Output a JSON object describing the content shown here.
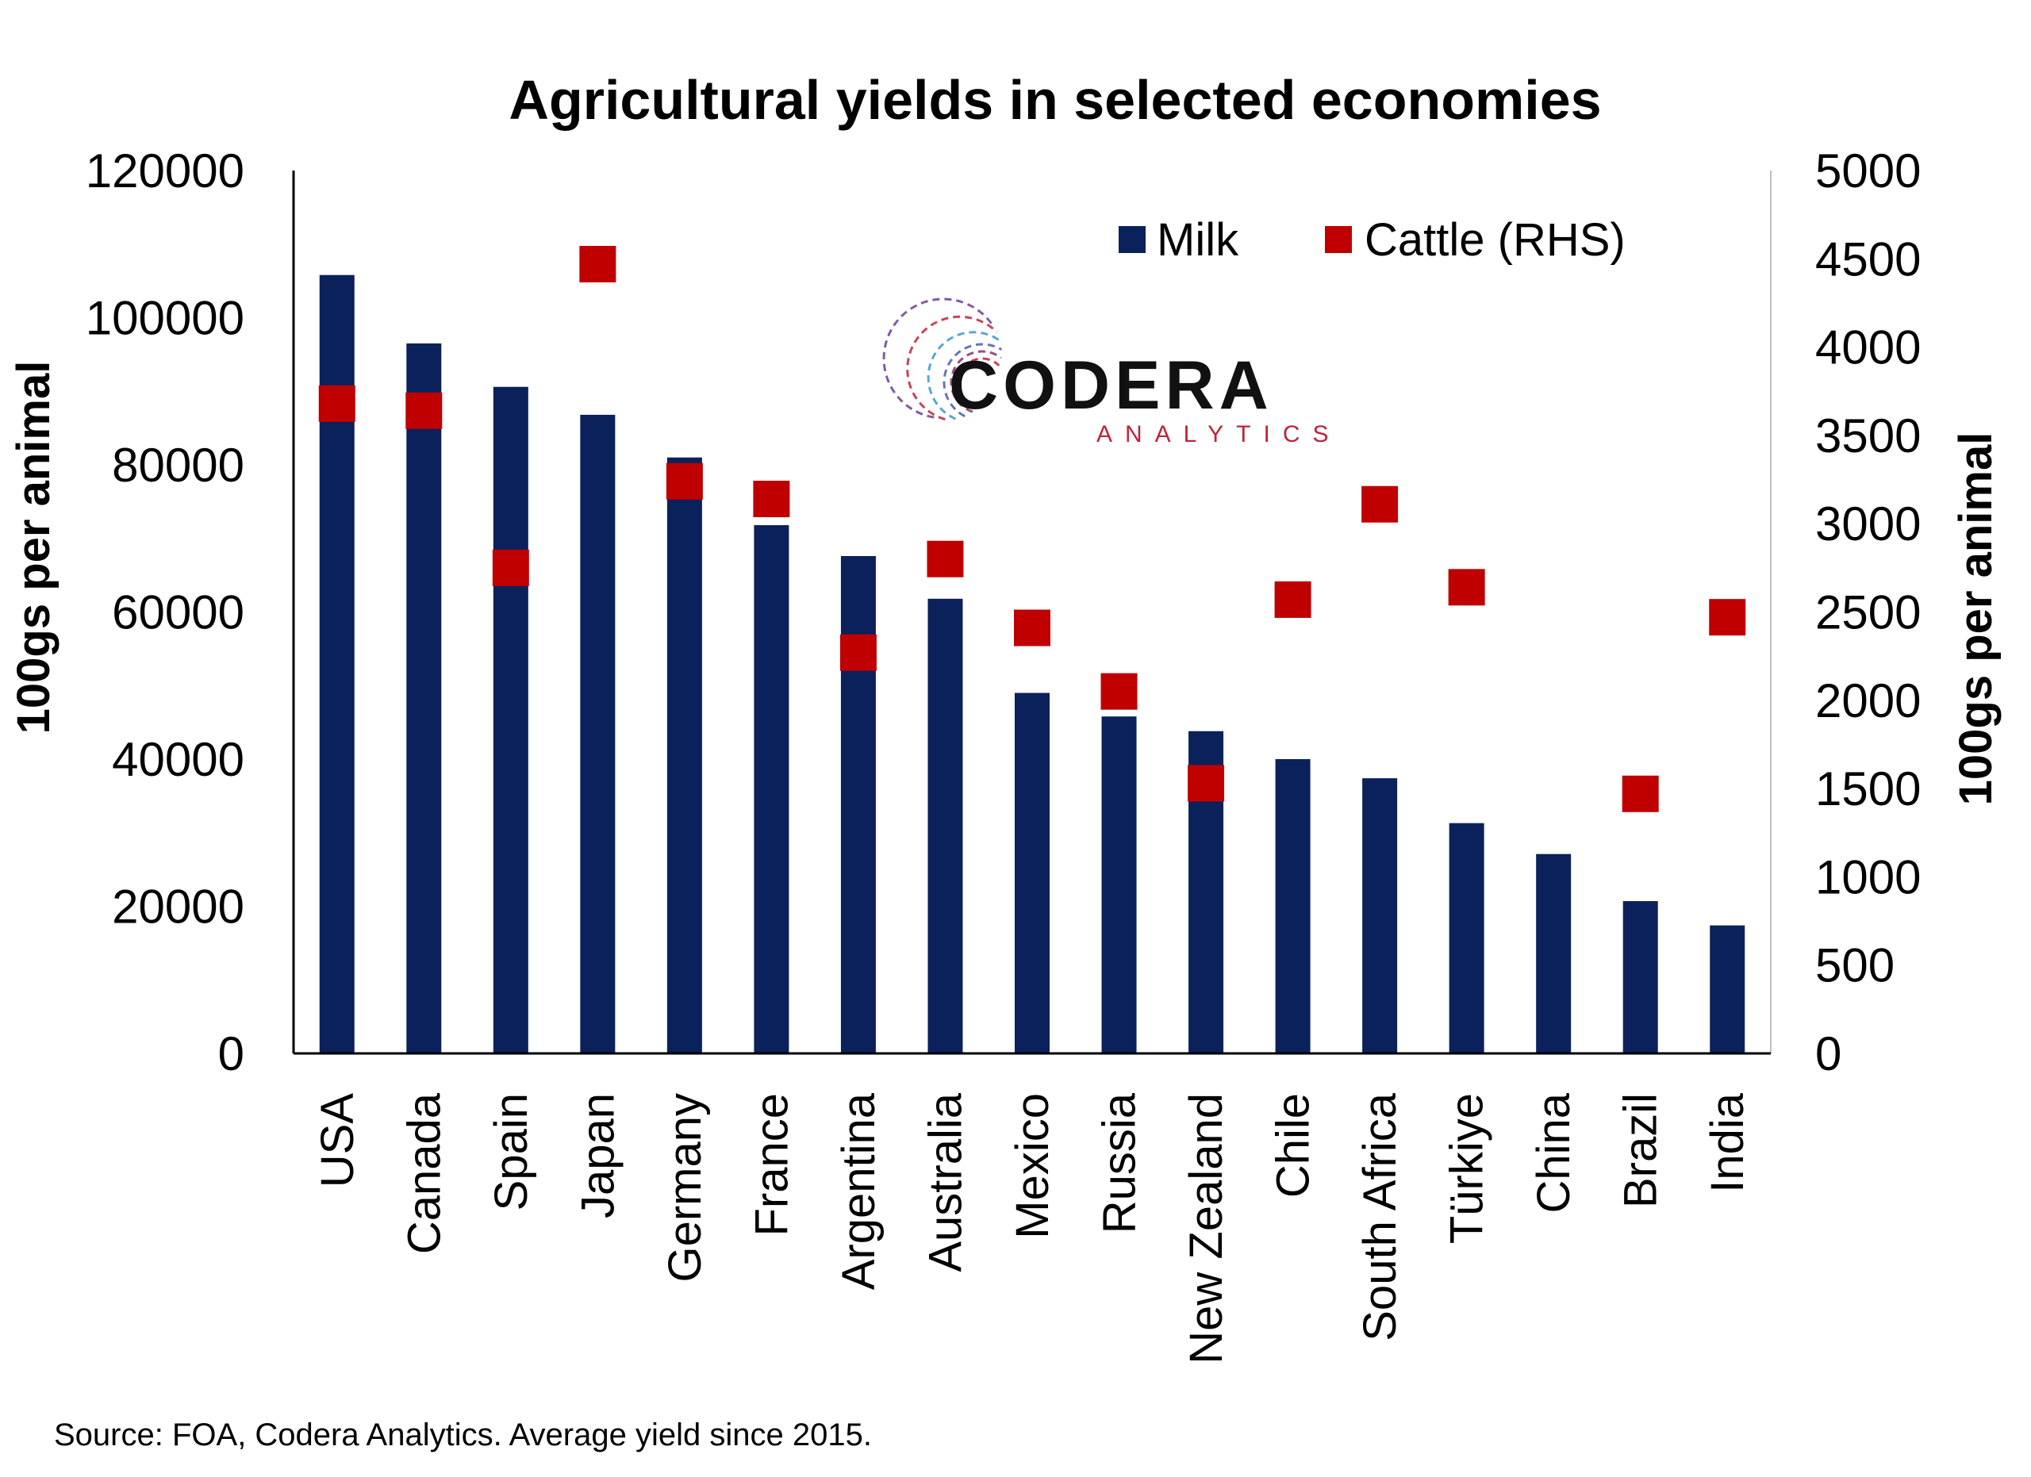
{
  "colors": {
    "milk": "#0b215b",
    "cattle": "#c00000",
    "axis": "#000000",
    "logo_dark": "#111111",
    "logo_red": "#c0233a"
  },
  "chart_data": {
    "type": "bar",
    "title": "Agricultural yields in selected economies",
    "ylabel": "100gs per animal",
    "y2label": "100gs per animal",
    "ylim": [
      0,
      120000
    ],
    "y2lim": [
      0,
      5000
    ],
    "yticks": [
      "0",
      "20000",
      "40000",
      "60000",
      "80000",
      "100000",
      "120000"
    ],
    "y2ticks": [
      "0",
      "500",
      "1000",
      "1500",
      "2000",
      "2500",
      "3000",
      "3500",
      "4000",
      "4500",
      "5000"
    ],
    "categories": [
      "USA",
      "Canada",
      "Spain",
      "Japan",
      "Germany",
      "France",
      "Argentina",
      "Australia",
      "Mexico",
      "Russia",
      "New Zealand",
      "Chile",
      "South Africa",
      "Türkiye",
      "China",
      "Brazil",
      "India"
    ],
    "series": [
      {
        "name": "Milk",
        "type": "bar",
        "axis": "left",
        "values": [
          105800,
          96500,
          90600,
          86800,
          81000,
          71800,
          67600,
          61800,
          49000,
          45800,
          43800,
          40000,
          37400,
          31300,
          27100,
          20700,
          17400
        ]
      },
      {
        "name": "Cattle (RHS)",
        "type": "scatter",
        "axis": "right",
        "values": [
          3680,
          3640,
          2750,
          4470,
          3240,
          3140,
          2270,
          2800,
          2410,
          2050,
          1530,
          2570,
          3110,
          2640,
          null,
          1470,
          2470
        ]
      }
    ],
    "legend_position": "top-right",
    "grid": false
  },
  "logo": {
    "name": "CODERA",
    "sub": "ANALYTICS"
  },
  "source": "Source: FOA, Codera Analytics. Average yield since 2015."
}
